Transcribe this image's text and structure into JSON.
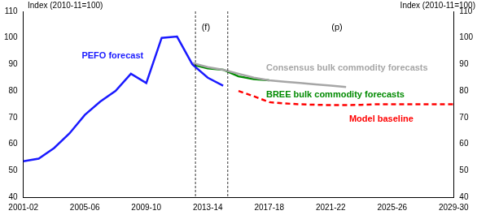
{
  "chart_data": {
    "type": "line",
    "y_label": "Index (2010-11=100)",
    "y2_label": "Index (2010-11=100)",
    "categories": [
      "2001-02",
      null,
      null,
      null,
      "2005-06",
      null,
      null,
      null,
      "2009-10",
      null,
      null,
      null,
      "2013-14",
      null,
      null,
      null,
      "2017-18",
      null,
      null,
      null,
      "2021-22",
      null,
      null,
      null,
      "2025-26",
      null,
      null,
      null,
      "2029-30"
    ],
    "series": [
      {
        "name": "PEFO forecast",
        "color": "#1a1aff",
        "line_style": "solid",
        "values": [
          53.5,
          54.5,
          58.5,
          64,
          71,
          76,
          80,
          86.5,
          83,
          100,
          100.5,
          90,
          85,
          82,
          null,
          null,
          null,
          null,
          null,
          null,
          null,
          null,
          null,
          null,
          null,
          null,
          null,
          null,
          null
        ]
      },
      {
        "name": "Consensus bulk commodity forecasts",
        "color": "#a6a6a6",
        "line_style": "solid",
        "values": [
          null,
          null,
          null,
          null,
          null,
          null,
          null,
          null,
          null,
          null,
          null,
          90.5,
          89,
          88,
          86.5,
          85,
          84,
          83.5,
          83,
          82.5,
          82,
          81.5,
          null,
          null,
          null,
          null,
          null,
          null,
          null
        ]
      },
      {
        "name": "BREE bulk commodity forecasts",
        "color": "#008a00",
        "line_style": "solid",
        "values": [
          null,
          null,
          null,
          null,
          null,
          null,
          null,
          null,
          null,
          null,
          null,
          90,
          88.5,
          88,
          85.5,
          84.5,
          84,
          null,
          null,
          null,
          null,
          null,
          null,
          null,
          null,
          null,
          null,
          null,
          null
        ]
      },
      {
        "name": "Model baseline",
        "color": "#ff0000",
        "line_style": "dashed",
        "values": [
          null,
          null,
          null,
          null,
          null,
          null,
          null,
          null,
          null,
          null,
          null,
          null,
          null,
          null,
          80,
          78,
          75.8,
          75.3,
          75,
          74.8,
          74.7,
          74.7,
          74.8,
          75,
          75,
          75,
          75,
          75,
          75
        ]
      }
    ],
    "annotations": [
      {
        "text": "PEFO forecast",
        "x": 3.8,
        "y": 93.2,
        "color": "#1a1aff"
      },
      {
        "text": "Consensus bulk commodity forecasts",
        "x": 15.8,
        "y": 88.7,
        "color": "#a6a6a6"
      },
      {
        "text": "BREE bulk commodity forecasts",
        "x": 15.8,
        "y": 78.5,
        "color": "#008a00"
      },
      {
        "text": "Model baseline",
        "x": 21.2,
        "y": 69.3,
        "color": "#ff0000"
      },
      {
        "text": "(f)",
        "x": 11.6,
        "y": 104,
        "color": "#000000"
      },
      {
        "text": "(p)",
        "x": 20.05,
        "y": 104,
        "color": "#000000"
      }
    ],
    "vertical_lines": [
      11.2,
      13.3
    ],
    "ylim": [
      40,
      110
    ],
    "yticks": [
      40,
      50,
      60,
      70,
      80,
      90,
      100,
      110
    ],
    "y2lim": [
      40,
      110
    ],
    "y2ticks": [
      40,
      50,
      60,
      70,
      80,
      90,
      100,
      110
    ],
    "grid": false
  }
}
